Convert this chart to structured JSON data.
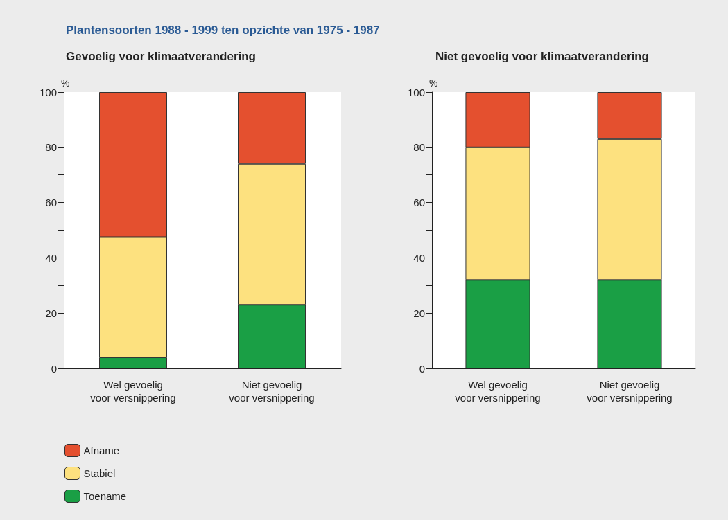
{
  "chart_data": [
    {
      "type": "bar",
      "title": "Plantensoorten 1988 - 1999 ten opzichte van 1975 - 1987",
      "subtitle": "Gevoelig voor klimaatverandering",
      "ylabel": "%",
      "stacked": true,
      "categories": [
        "Wel gevoelig\nvoor versnippering",
        "Niet gevoelig\nvoor versnippering"
      ],
      "series": [
        {
          "name": "Toename",
          "color": "#1a9f45",
          "values": [
            4,
            23
          ]
        },
        {
          "name": "Stabiel",
          "color": "#fde17f",
          "values": [
            43.5,
            51
          ]
        },
        {
          "name": "Afname",
          "color": "#e4502f",
          "values": [
            52.5,
            26
          ]
        }
      ],
      "ylim": [
        0,
        100
      ],
      "yticks": [
        0,
        {
          "value": 10,
          "label": null
        },
        20,
        {
          "value": 30,
          "label": null
        },
        40,
        {
          "value": 50,
          "label": null
        },
        60,
        {
          "value": 70,
          "label": null
        },
        80,
        {
          "value": 90,
          "label": null
        },
        100
      ],
      "grid": false,
      "legend": "bottom left"
    },
    {
      "type": "bar",
      "title": "Niet gevoelig voor klimaatverandering",
      "ylabel": "%",
      "stacked": true,
      "categories": [
        "Wel gevoelig\nvoor versnippering",
        "Niet gevoelig\nvoor versnippering"
      ],
      "series": [
        {
          "color": "#1a9f45",
          "values": [
            32,
            32
          ]
        },
        {
          "color": "#fde17f",
          "values": [
            48,
            51
          ]
        },
        {
          "color": "#e4502f",
          "values": [
            20,
            17
          ]
        }
      ],
      "ylim": [
        0,
        100
      ],
      "yticks": [
        0,
        {
          "value": 10,
          "label": null
        },
        20,
        {
          "value": 30,
          "label": null
        },
        40,
        {
          "value": 50,
          "label": null
        },
        60,
        {
          "value": 70,
          "label": null
        },
        80,
        {
          "value": 90,
          "label": null
        },
        100
      ],
      "grid": false
    }
  ]
}
